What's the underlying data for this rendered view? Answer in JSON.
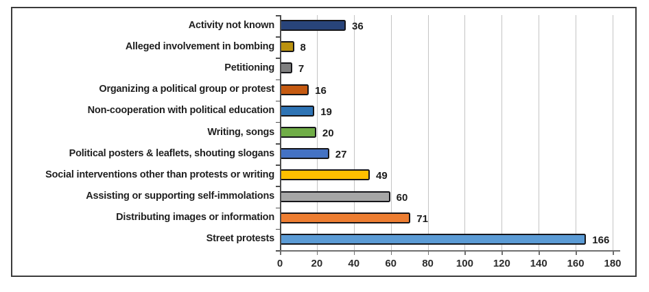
{
  "chart_data": {
    "type": "bar",
    "orientation": "horizontal",
    "title": "",
    "xlabel": "",
    "ylabel": "",
    "xlim": [
      0,
      180
    ],
    "grid": true,
    "legend": false,
    "x_ticks": [
      0,
      20,
      40,
      60,
      80,
      100,
      120,
      140,
      160,
      180
    ],
    "categories": [
      "Activity not known",
      "Alleged involvement in bombing",
      "Petitioning",
      "Organizing a political group or protest",
      "Non-cooperation with political education",
      "Writing, songs",
      "Political posters & leaflets, shouting slogans",
      "Social interventions other than protests or writing",
      "Assisting or supporting self-immolations",
      "Distributing images or information",
      "Street protests"
    ],
    "values": [
      36,
      8,
      7,
      16,
      19,
      20,
      27,
      49,
      60,
      71,
      166
    ],
    "bar_colors": [
      "#28447A",
      "#BA9210",
      "#7F7F7F",
      "#C55A11",
      "#2E74B5",
      "#70AD47",
      "#4472C4",
      "#FFC000",
      "#A6A6A6",
      "#ED7D31",
      "#5B9BD5"
    ],
    "bar_border_color": "#151519",
    "gridline_color": "#C3C3C3",
    "axis_color": "#595959"
  }
}
